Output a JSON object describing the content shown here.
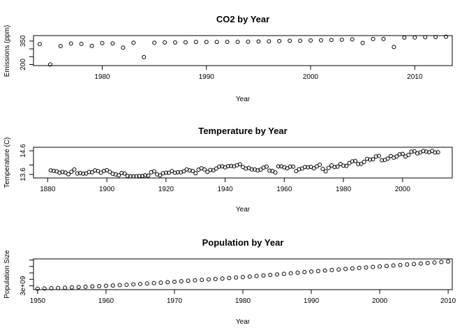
{
  "chart_data": [
    {
      "type": "scatter",
      "title": "CO2 by Year",
      "xlabel": "Year",
      "ylabel": "Emissions (ppm)",
      "xlim": [
        1973.4,
        2013.6
      ],
      "ylim": [
        193,
        385
      ],
      "xticks": [
        1980,
        1990,
        2000,
        2010
      ],
      "yticks": [
        200,
        250,
        300,
        350
      ],
      "ytick_labels": [
        "200",
        "",
        "",
        "350"
      ],
      "grid": false,
      "x": [
        1974,
        1975,
        1976,
        1977,
        1978,
        1979,
        1980,
        1981,
        1982,
        1983,
        1984,
        1985,
        1986,
        1987,
        1988,
        1989,
        1990,
        1991,
        1992,
        1993,
        1994,
        1995,
        1996,
        1997,
        1998,
        1999,
        2000,
        2001,
        2002,
        2003,
        2004,
        2005,
        2006,
        2007,
        2008,
        2009,
        2010,
        2011,
        2012,
        2013
      ],
      "y": [
        330,
        200,
        318,
        334,
        332,
        319,
        337,
        335,
        308,
        339,
        247,
        339,
        341,
        341,
        342,
        344,
        344,
        344,
        345,
        345,
        346,
        347,
        348,
        350,
        352,
        352,
        354,
        355,
        357,
        359,
        361,
        338,
        363,
        364,
        312,
        372,
        373,
        375,
        376,
        378
      ]
    },
    {
      "type": "scatter",
      "title": "Temperature by Year",
      "xlabel": "Year",
      "ylabel": "Temperature (C)",
      "xlim": [
        1875.2,
        2016.8
      ],
      "ylim": [
        13.45,
        14.75
      ],
      "xticks": [
        1880,
        1900,
        1920,
        1940,
        1960,
        1980,
        2000
      ],
      "yticks": [
        13.6,
        14.0,
        14.6
      ],
      "ytick_labels": [
        "13.6",
        "",
        "14.6"
      ],
      "grid": false,
      "x_start": 1881,
      "x_end": 2012,
      "y": [
        13.77,
        13.75,
        13.73,
        13.67,
        13.7,
        13.68,
        13.61,
        13.71,
        13.81,
        13.64,
        13.66,
        13.63,
        13.64,
        13.7,
        13.69,
        13.77,
        13.74,
        13.67,
        13.75,
        13.78,
        13.71,
        13.63,
        13.6,
        13.56,
        13.66,
        13.64,
        13.54,
        13.52,
        13.52,
        13.52,
        13.53,
        13.54,
        13.56,
        13.55,
        13.69,
        13.73,
        13.6,
        13.56,
        13.65,
        13.67,
        13.67,
        13.74,
        13.67,
        13.69,
        13.69,
        13.73,
        13.81,
        13.77,
        13.75,
        13.65,
        13.8,
        13.86,
        13.81,
        13.71,
        13.79,
        13.77,
        13.85,
        13.93,
        13.94,
        13.9,
        13.95,
        13.96,
        13.94,
        13.99,
        14.03,
        13.91,
        13.85,
        13.88,
        13.81,
        13.81,
        13.77,
        13.8,
        13.89,
        13.93,
        13.76,
        13.75,
        13.68,
        13.94,
        13.94,
        13.9,
        13.86,
        13.93,
        13.93,
        13.74,
        13.82,
        13.85,
        13.91,
        13.9,
        13.92,
        13.86,
        13.94,
        14.01,
        13.83,
        13.73,
        13.88,
        13.98,
        13.91,
        13.93,
        14.04,
        13.97,
        13.96,
        14.08,
        14.15,
        14.17,
        14.04,
        14.05,
        14.13,
        14.26,
        14.23,
        14.24,
        14.36,
        14.38,
        14.2,
        14.21,
        14.27,
        14.38,
        14.31,
        14.36,
        14.45,
        14.47,
        14.36,
        14.43,
        14.56,
        14.58,
        14.49,
        14.53,
        14.59,
        14.57,
        14.54,
        14.6,
        14.53,
        14.54
      ]
    },
    {
      "type": "scatter",
      "title": "Population by Year",
      "xlabel": "Year",
      "ylabel": "Population Size",
      "xlim": [
        1949.4,
        2010.6
      ],
      "ylim": [
        2410000000.0,
        7160000000.0
      ],
      "xticks": [
        1950,
        1960,
        1970,
        1980,
        1990,
        2000,
        2010
      ],
      "yticks": [
        3000000000.0,
        4000000000.0,
        5000000000.0,
        6000000000.0,
        7000000000.0
      ],
      "ytick_labels": [
        "3e+09",
        "",
        "",
        "",
        ""
      ],
      "grid": false,
      "x_start": 1950,
      "x_end": 2010,
      "y": [
        2560000000.0,
        2590000000.0,
        2630000000.0,
        2670000000.0,
        2710000000.0,
        2760000000.0,
        2800000000.0,
        2860000000.0,
        2910000000.0,
        2950000000.0,
        3000000000.0,
        3050000000.0,
        3110000000.0,
        3170000000.0,
        3220000000.0,
        3280000000.0,
        3350000000.0,
        3420000000.0,
        3490000000.0,
        3560000000.0,
        3630000000.0,
        3700000000.0,
        3780000000.0,
        3850000000.0,
        3920000000.0,
        3990000000.0,
        4060000000.0,
        4130000000.0,
        4200000000.0,
        4280000000.0,
        4350000000.0,
        4430000000.0,
        4510000000.0,
        4600000000.0,
        4680000000.0,
        4760000000.0,
        4850000000.0,
        4940000000.0,
        5030000000.0,
        5120000000.0,
        5210000000.0,
        5290000000.0,
        5370000000.0,
        5450000000.0,
        5530000000.0,
        5610000000.0,
        5690000000.0,
        5770000000.0,
        5840000000.0,
        5920000000.0,
        6000000000.0,
        6070000000.0,
        6150000000.0,
        6220000000.0,
        6300000000.0,
        6370000000.0,
        6450000000.0,
        6520000000.0,
        6600000000.0,
        6680000000.0,
        6760000000.0
      ]
    }
  ]
}
